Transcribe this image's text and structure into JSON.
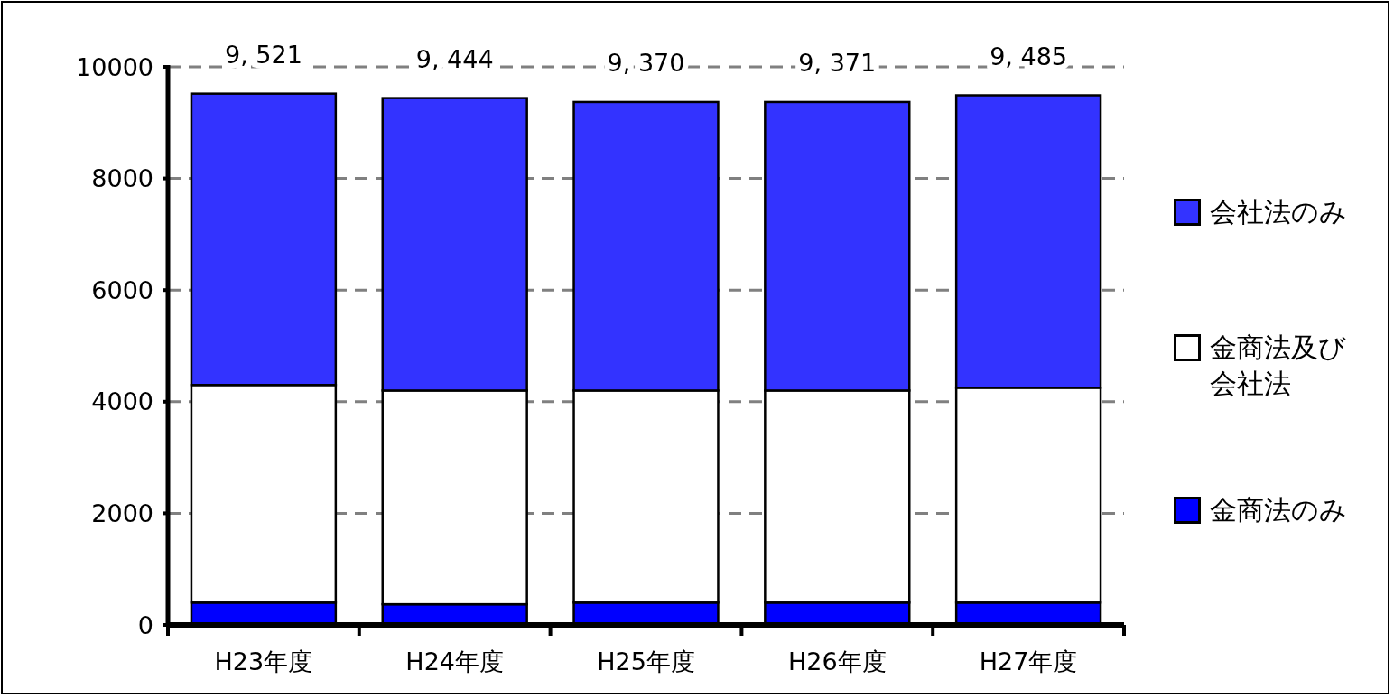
{
  "chart_data": {
    "type": "bar",
    "stacked": true,
    "categories": [
      "H23年度",
      "H24年度",
      "H25年度",
      "H26年度",
      "H27年度"
    ],
    "series": [
      {
        "name": "金商法のみ",
        "color": "#0000ff",
        "values": [
          400,
          370,
          400,
          400,
          400
        ]
      },
      {
        "name": "金商法及び会社法",
        "color": "#ffffff",
        "values": [
          3900,
          3830,
          3800,
          3800,
          3850
        ]
      },
      {
        "name": "会社法のみ",
        "color": "#3333ff",
        "values": [
          5220,
          5240,
          5170,
          5170,
          5240
        ]
      }
    ],
    "totals": [
      "9, 521",
      "9, 444",
      "9, 370",
      "9, 371",
      "9, 485"
    ],
    "ylim": [
      0,
      10000
    ],
    "yticks": [
      0,
      2000,
      4000,
      6000,
      8000,
      10000
    ],
    "grid": "y",
    "legend": "right"
  }
}
